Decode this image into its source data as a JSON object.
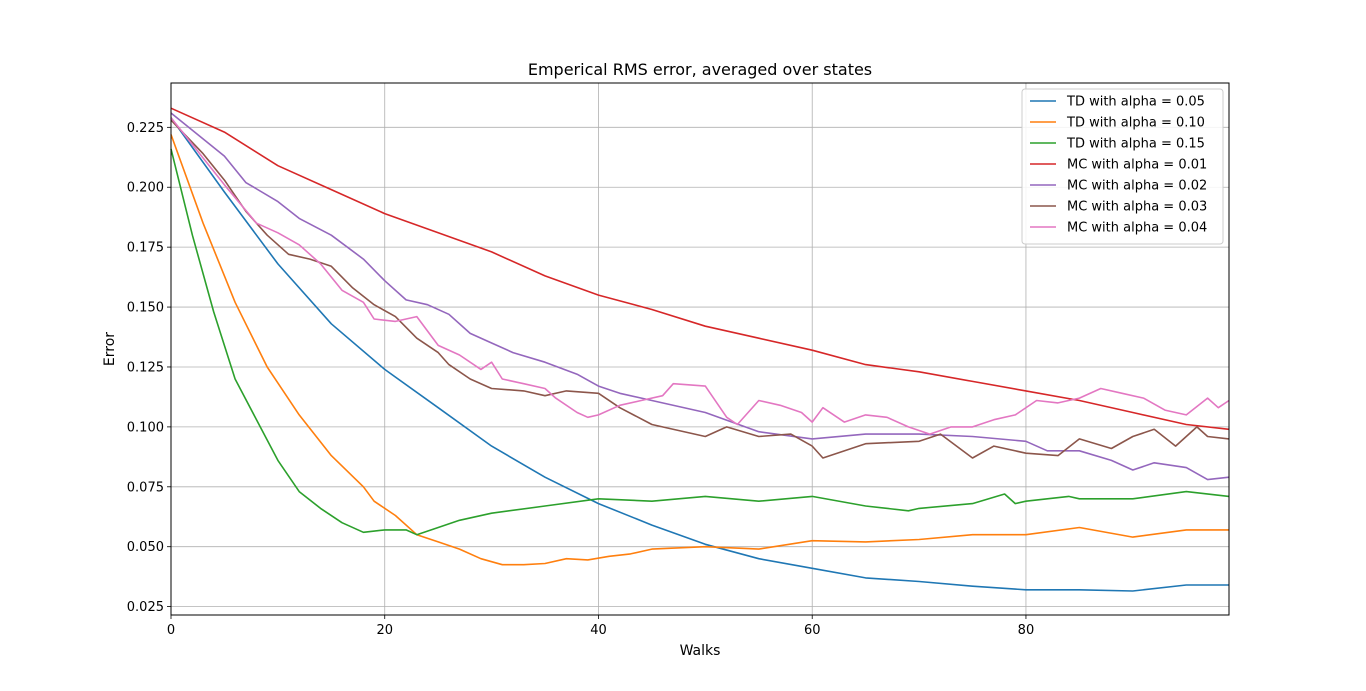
{
  "chart_data": {
    "type": "line",
    "title": "Emperical RMS error, averaged over states",
    "xlabel": "Walks",
    "ylabel": "Error",
    "xlim": [
      0,
      99
    ],
    "ylim": [
      0.0215,
      0.2435
    ],
    "x_ticks": [
      0,
      20,
      40,
      60,
      80
    ],
    "x_tick_labels": [
      "0",
      "20",
      "40",
      "60",
      "80"
    ],
    "y_ticks": [
      0.025,
      0.05,
      0.075,
      0.1,
      0.125,
      0.15,
      0.175,
      0.2,
      0.225
    ],
    "y_tick_labels": [
      "0.025",
      "0.050",
      "0.075",
      "0.100",
      "0.125",
      "0.150",
      "0.175",
      "0.200",
      "0.225"
    ],
    "grid": true,
    "legend_position": "top-right",
    "series": [
      {
        "name": "TD with alpha = 0.05",
        "color": "#1f77b4",
        "points": [
          [
            0,
            0.229
          ],
          [
            5,
            0.198
          ],
          [
            10,
            0.168
          ],
          [
            15,
            0.143
          ],
          [
            20,
            0.124
          ],
          [
            25,
            0.108
          ],
          [
            30,
            0.092
          ],
          [
            35,
            0.079
          ],
          [
            40,
            0.068
          ],
          [
            45,
            0.059
          ],
          [
            50,
            0.051
          ],
          [
            55,
            0.045
          ],
          [
            60,
            0.041
          ],
          [
            65,
            0.037
          ],
          [
            70,
            0.0355
          ],
          [
            75,
            0.0335
          ],
          [
            80,
            0.032
          ],
          [
            85,
            0.032
          ],
          [
            90,
            0.0315
          ],
          [
            95,
            0.034
          ],
          [
            99,
            0.034
          ]
        ]
      },
      {
        "name": "TD with alpha = 0.10",
        "color": "#ff7f0e",
        "points": [
          [
            0,
            0.222
          ],
          [
            3,
            0.185
          ],
          [
            6,
            0.152
          ],
          [
            9,
            0.125
          ],
          [
            12,
            0.105
          ],
          [
            15,
            0.088
          ],
          [
            18,
            0.075
          ],
          [
            19,
            0.069
          ],
          [
            21,
            0.063
          ],
          [
            23,
            0.055
          ],
          [
            25,
            0.052
          ],
          [
            27,
            0.049
          ],
          [
            29,
            0.045
          ],
          [
            31,
            0.0425
          ],
          [
            33,
            0.0425
          ],
          [
            35,
            0.043
          ],
          [
            37,
            0.045
          ],
          [
            39,
            0.0445
          ],
          [
            41,
            0.046
          ],
          [
            43,
            0.047
          ],
          [
            45,
            0.049
          ],
          [
            50,
            0.05
          ],
          [
            55,
            0.049
          ],
          [
            60,
            0.0525
          ],
          [
            65,
            0.052
          ],
          [
            70,
            0.053
          ],
          [
            75,
            0.055
          ],
          [
            80,
            0.055
          ],
          [
            85,
            0.058
          ],
          [
            90,
            0.054
          ],
          [
            95,
            0.057
          ],
          [
            97,
            0.057
          ],
          [
            99,
            0.057
          ]
        ]
      },
      {
        "name": "TD with alpha = 0.15",
        "color": "#2ca02c",
        "points": [
          [
            0,
            0.216
          ],
          [
            2,
            0.18
          ],
          [
            4,
            0.148
          ],
          [
            6,
            0.12
          ],
          [
            8,
            0.103
          ],
          [
            10,
            0.086
          ],
          [
            12,
            0.073
          ],
          [
            14,
            0.066
          ],
          [
            16,
            0.06
          ],
          [
            18,
            0.056
          ],
          [
            20,
            0.057
          ],
          [
            22,
            0.057
          ],
          [
            23,
            0.055
          ],
          [
            25,
            0.058
          ],
          [
            27,
            0.061
          ],
          [
            30,
            0.064
          ],
          [
            35,
            0.067
          ],
          [
            40,
            0.07
          ],
          [
            45,
            0.069
          ],
          [
            50,
            0.071
          ],
          [
            55,
            0.069
          ],
          [
            60,
            0.071
          ],
          [
            65,
            0.067
          ],
          [
            69,
            0.065
          ],
          [
            70,
            0.066
          ],
          [
            75,
            0.068
          ],
          [
            78,
            0.072
          ],
          [
            79,
            0.068
          ],
          [
            80,
            0.069
          ],
          [
            84,
            0.071
          ],
          [
            85,
            0.07
          ],
          [
            90,
            0.07
          ],
          [
            95,
            0.073
          ],
          [
            99,
            0.071
          ]
        ]
      },
      {
        "name": "MC with alpha = 0.01",
        "color": "#d62728",
        "points": [
          [
            0,
            0.233
          ],
          [
            5,
            0.223
          ],
          [
            10,
            0.209
          ],
          [
            15,
            0.199
          ],
          [
            20,
            0.189
          ],
          [
            25,
            0.181
          ],
          [
            30,
            0.173
          ],
          [
            35,
            0.163
          ],
          [
            40,
            0.155
          ],
          [
            45,
            0.149
          ],
          [
            50,
            0.142
          ],
          [
            55,
            0.137
          ],
          [
            60,
            0.132
          ],
          [
            65,
            0.126
          ],
          [
            70,
            0.123
          ],
          [
            75,
            0.119
          ],
          [
            80,
            0.115
          ],
          [
            85,
            0.111
          ],
          [
            90,
            0.106
          ],
          [
            95,
            0.101
          ],
          [
            99,
            0.099
          ]
        ]
      },
      {
        "name": "MC with alpha = 0.02",
        "color": "#9467bd",
        "points": [
          [
            0,
            0.231
          ],
          [
            5,
            0.213
          ],
          [
            7,
            0.202
          ],
          [
            10,
            0.194
          ],
          [
            12,
            0.187
          ],
          [
            15,
            0.18
          ],
          [
            18,
            0.17
          ],
          [
            20,
            0.161
          ],
          [
            22,
            0.153
          ],
          [
            24,
            0.151
          ],
          [
            26,
            0.147
          ],
          [
            28,
            0.139
          ],
          [
            30,
            0.135
          ],
          [
            32,
            0.131
          ],
          [
            35,
            0.127
          ],
          [
            38,
            0.122
          ],
          [
            40,
            0.117
          ],
          [
            42,
            0.114
          ],
          [
            45,
            0.111
          ],
          [
            50,
            0.106
          ],
          [
            55,
            0.098
          ],
          [
            60,
            0.095
          ],
          [
            65,
            0.097
          ],
          [
            70,
            0.097
          ],
          [
            75,
            0.096
          ],
          [
            80,
            0.094
          ],
          [
            82,
            0.09
          ],
          [
            85,
            0.09
          ],
          [
            88,
            0.086
          ],
          [
            90,
            0.082
          ],
          [
            92,
            0.085
          ],
          [
            95,
            0.083
          ],
          [
            97,
            0.078
          ],
          [
            99,
            0.079
          ]
        ]
      },
      {
        "name": "MC with alpha = 0.03",
        "color": "#8c564b",
        "points": [
          [
            0,
            0.228
          ],
          [
            3,
            0.214
          ],
          [
            5,
            0.203
          ],
          [
            7,
            0.19
          ],
          [
            9,
            0.18
          ],
          [
            11,
            0.172
          ],
          [
            13,
            0.17
          ],
          [
            15,
            0.167
          ],
          [
            17,
            0.158
          ],
          [
            19,
            0.151
          ],
          [
            21,
            0.146
          ],
          [
            23,
            0.137
          ],
          [
            25,
            0.131
          ],
          [
            26,
            0.126
          ],
          [
            28,
            0.12
          ],
          [
            30,
            0.116
          ],
          [
            33,
            0.115
          ],
          [
            35,
            0.113
          ],
          [
            37,
            0.115
          ],
          [
            40,
            0.114
          ],
          [
            42,
            0.108
          ],
          [
            45,
            0.101
          ],
          [
            50,
            0.096
          ],
          [
            52,
            0.1
          ],
          [
            55,
            0.096
          ],
          [
            58,
            0.097
          ],
          [
            60,
            0.092
          ],
          [
            61,
            0.087
          ],
          [
            65,
            0.093
          ],
          [
            70,
            0.094
          ],
          [
            72,
            0.097
          ],
          [
            75,
            0.087
          ],
          [
            77,
            0.092
          ],
          [
            80,
            0.089
          ],
          [
            83,
            0.088
          ],
          [
            85,
            0.095
          ],
          [
            88,
            0.091
          ],
          [
            90,
            0.096
          ],
          [
            92,
            0.099
          ],
          [
            94,
            0.092
          ],
          [
            96,
            0.1
          ],
          [
            97,
            0.096
          ],
          [
            99,
            0.095
          ]
        ]
      },
      {
        "name": "MC with alpha = 0.04",
        "color": "#e377c2",
        "points": [
          [
            0,
            0.229
          ],
          [
            5,
            0.201
          ],
          [
            8,
            0.185
          ],
          [
            10,
            0.181
          ],
          [
            12,
            0.176
          ],
          [
            14,
            0.168
          ],
          [
            16,
            0.157
          ],
          [
            18,
            0.152
          ],
          [
            19,
            0.145
          ],
          [
            21,
            0.144
          ],
          [
            23,
            0.146
          ],
          [
            25,
            0.134
          ],
          [
            27,
            0.13
          ],
          [
            29,
            0.124
          ],
          [
            30,
            0.127
          ],
          [
            31,
            0.12
          ],
          [
            33,
            0.118
          ],
          [
            35,
            0.116
          ],
          [
            36,
            0.112
          ],
          [
            38,
            0.106
          ],
          [
            39,
            0.104
          ],
          [
            40,
            0.105
          ],
          [
            42,
            0.109
          ],
          [
            44,
            0.111
          ],
          [
            46,
            0.113
          ],
          [
            47,
            0.118
          ],
          [
            50,
            0.117
          ],
          [
            52,
            0.104
          ],
          [
            53,
            0.101
          ],
          [
            55,
            0.111
          ],
          [
            57,
            0.109
          ],
          [
            59,
            0.106
          ],
          [
            60,
            0.102
          ],
          [
            61,
            0.108
          ],
          [
            63,
            0.102
          ],
          [
            65,
            0.105
          ],
          [
            67,
            0.104
          ],
          [
            69,
            0.1
          ],
          [
            71,
            0.097
          ],
          [
            73,
            0.1
          ],
          [
            75,
            0.1
          ],
          [
            77,
            0.103
          ],
          [
            79,
            0.105
          ],
          [
            81,
            0.111
          ],
          [
            83,
            0.11
          ],
          [
            85,
            0.112
          ],
          [
            87,
            0.116
          ],
          [
            89,
            0.114
          ],
          [
            91,
            0.112
          ],
          [
            93,
            0.107
          ],
          [
            95,
            0.105
          ],
          [
            97,
            0.112
          ],
          [
            98,
            0.108
          ],
          [
            99,
            0.111
          ]
        ]
      }
    ]
  }
}
